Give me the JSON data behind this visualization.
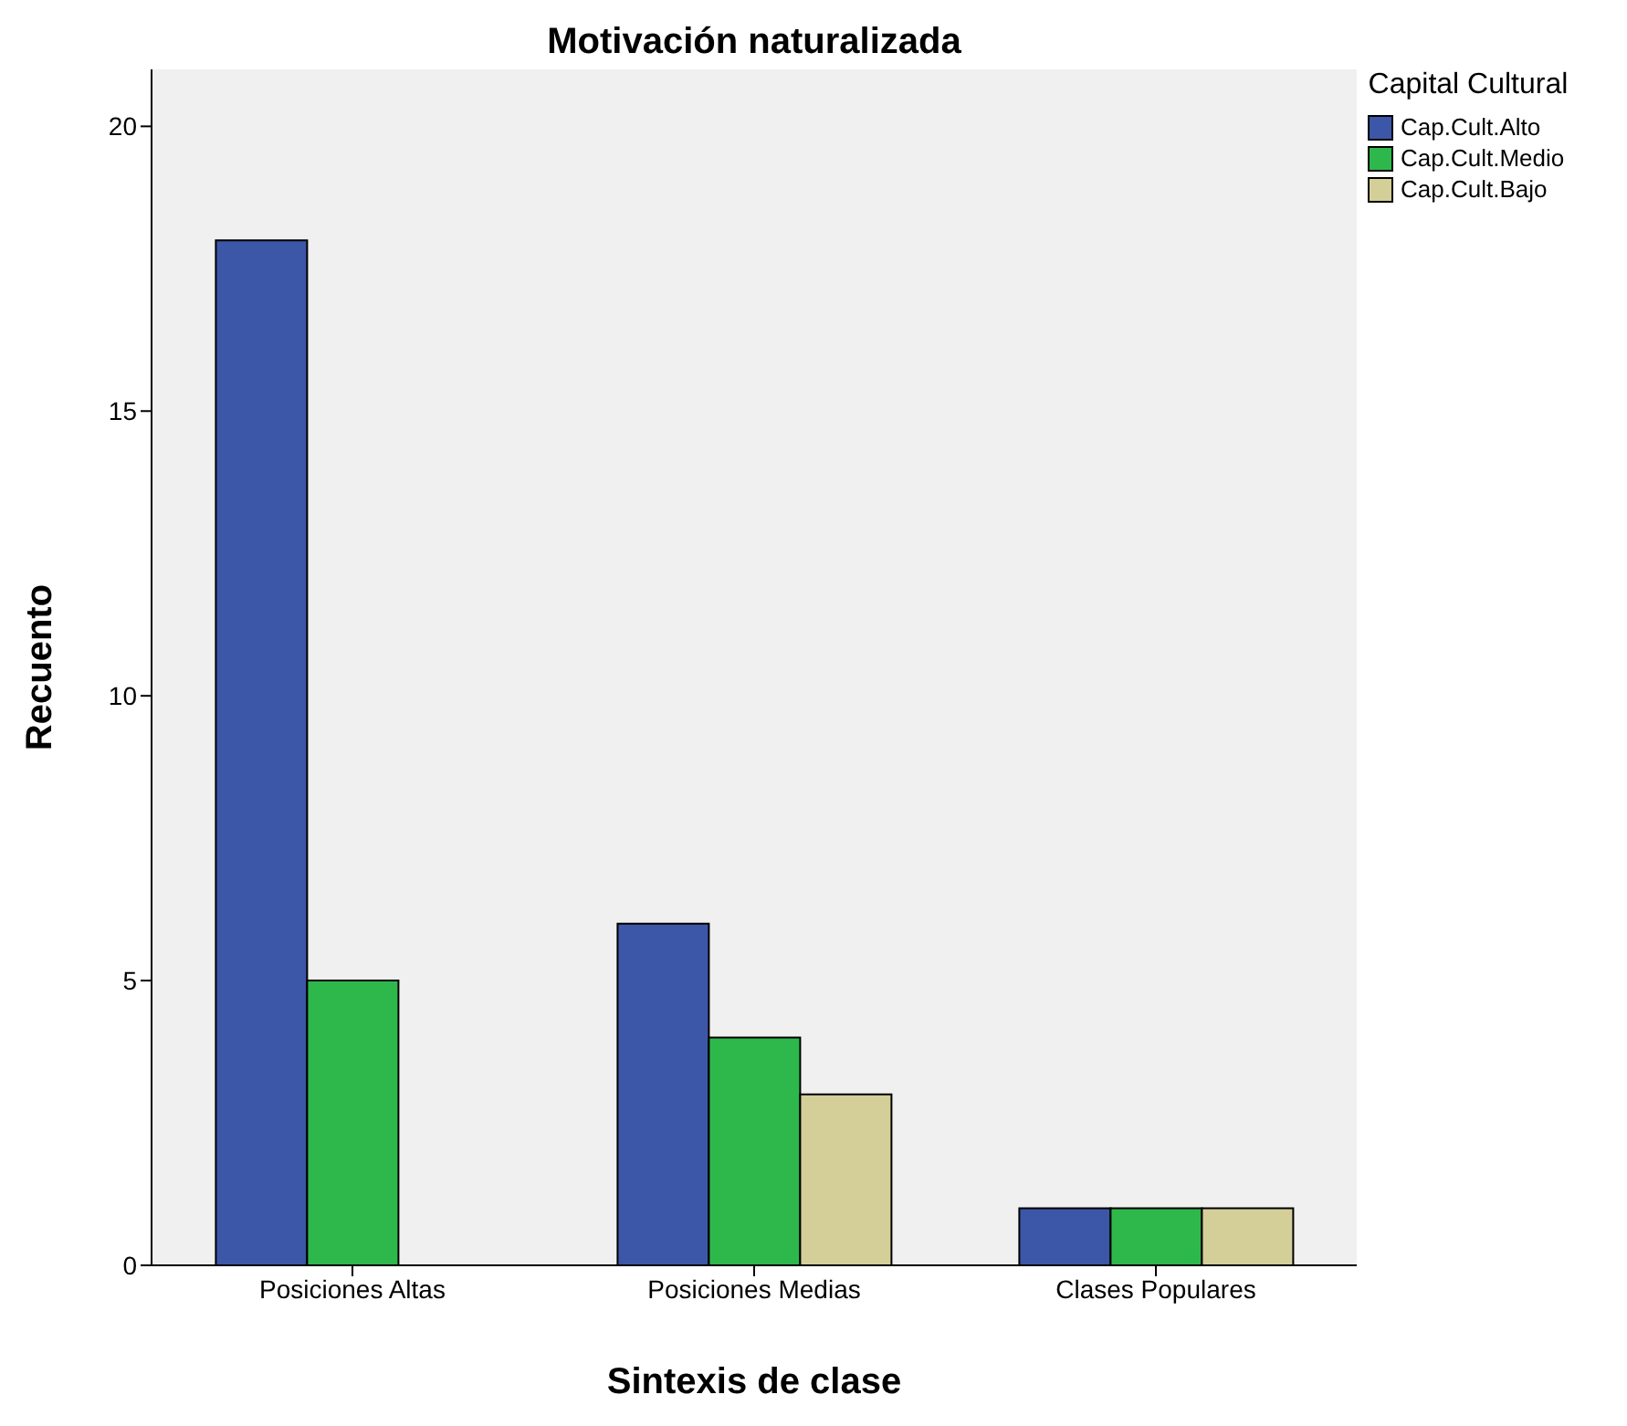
{
  "chart_data": {
    "type": "bar",
    "title": "Motivación naturalizada",
    "xlabel": "Sintexis de clase",
    "ylabel": "Recuento",
    "legend_title": "Capital Cultural",
    "legend": "top right",
    "categories": [
      "Posiciones Altas",
      "Posiciones Medias",
      "Clases Populares"
    ],
    "ylim": [
      0,
      21
    ],
    "yticks": [
      0,
      5,
      10,
      15,
      20
    ],
    "series": [
      {
        "name": "Cap.Cult.Alto",
        "color": "#3c56a8",
        "values": [
          18,
          6,
          1
        ]
      },
      {
        "name": "Cap.Cult.Medio",
        "color": "#2eb84c",
        "values": [
          5,
          4,
          1
        ]
      },
      {
        "name": "Cap.Cult.Bajo",
        "color": "#d4cf98",
        "values": [
          null,
          3,
          1
        ]
      }
    ]
  }
}
